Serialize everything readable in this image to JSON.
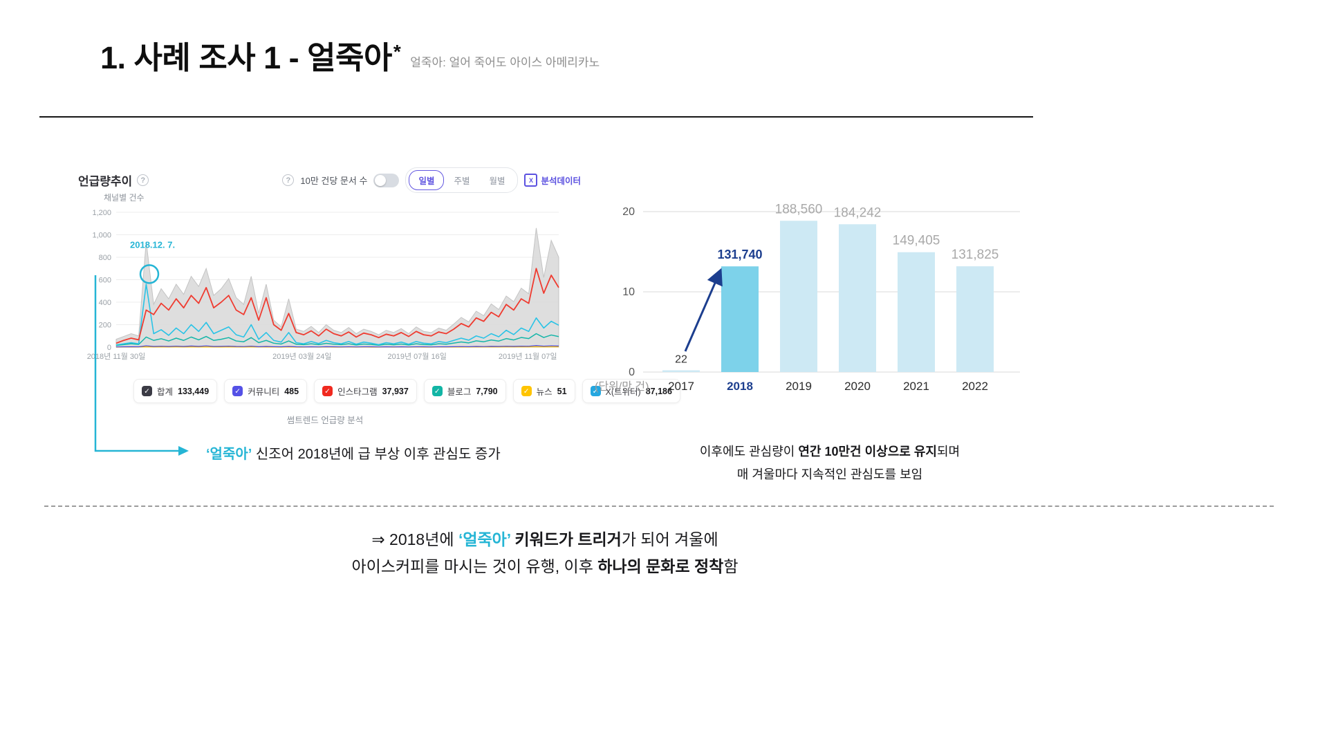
{
  "page": {
    "title": "1. 사례 조사 1 - 얼죽아",
    "title_star": "*",
    "title_note": "얼죽아: 얼어 죽어도 아이스 아메리카노"
  },
  "trend_panel": {
    "header": "언급량추이",
    "help_glyph": "?",
    "check_glyph": "✓",
    "doc_count_label": "10만 건당 문서 수",
    "period_tabs": [
      {
        "label": "일별",
        "selected": true
      },
      {
        "label": "주별",
        "selected": false
      },
      {
        "label": "월별",
        "selected": false
      }
    ],
    "export_label": "분석데이터",
    "channel_axis_label": "채널별 건수",
    "source_caption": "썸트렌드 언급량 분석",
    "legend": [
      {
        "label": "합계",
        "count": "133,449",
        "color": "#3b3b45"
      },
      {
        "label": "커뮤니티",
        "count": "485",
        "color": "#5451e6"
      },
      {
        "label": "인스타그램",
        "count": "37,937",
        "color": "#f0291f"
      },
      {
        "label": "블로그",
        "count": "7,790",
        "color": "#12b5a5"
      },
      {
        "label": "뉴스",
        "count": "51",
        "color": "#ffc400"
      },
      {
        "label": "X(트위터)",
        "count": "87,186",
        "color": "#24a7e0"
      }
    ]
  },
  "left_caption": {
    "highlight": "‘얼죽아’",
    "text": " 신조어 2018년에 급 부상 이후 관심도 증가"
  },
  "right_caption": {
    "line1_prefix": "이후에도 관심량이 ",
    "line1_bold": "연간 10만건 이상으로 유지",
    "line1_suffix": "되며",
    "line2": "매 겨울마다 지속적인 관심도를 보임"
  },
  "conclusion": {
    "line1_prefix": "⇒ 2018년에 ",
    "line1_highlight": "‘얼죽아’",
    "line1_bold": " 키워드가 트리거",
    "line1_suffix": "가 되어 겨울에",
    "line2_prefix": "아이스커피를 마시는 것이 유행, 이후 ",
    "line2_bold": "하나의 문화로 정착",
    "line2_suffix": "함"
  },
  "chart_data": [
    {
      "type": "line",
      "title": "언급량추이",
      "ylabel": "채널별 건수",
      "ylim": [
        0,
        1200
      ],
      "grid": true,
      "accent": "#25b5d5",
      "y_ticks": [
        "1,200",
        "1,000",
        "800",
        "600",
        "400",
        "200",
        "0"
      ],
      "y_tick_values": [
        1200,
        1000,
        800,
        600,
        400,
        200,
        0
      ],
      "x_ticks": [
        {
          "pos": 0.0,
          "label": "2018년 11월 30일"
        },
        {
          "pos": 0.42,
          "label": "2019년 03월 24일"
        },
        {
          "pos": 0.68,
          "label": "2019년 07월 16일"
        },
        {
          "pos": 0.93,
          "label": "2019년 11월 07일"
        }
      ],
      "annotation": {
        "label": "2018.12. 7.",
        "x": 0.075,
        "y": 650
      },
      "series": [
        {
          "name": "합계",
          "color": "#dadada",
          "stroke": "#c3c3c3",
          "fill": true,
          "opacity": 0.9,
          "values": [
            70,
            95,
            120,
            100,
            940,
            380,
            520,
            430,
            560,
            470,
            630,
            540,
            700,
            460,
            520,
            610,
            440,
            380,
            630,
            300,
            560,
            240,
            180,
            430,
            160,
            140,
            185,
            130,
            200,
            150,
            130,
            175,
            120,
            160,
            140,
            110,
            150,
            130,
            165,
            120,
            180,
            140,
            130,
            170,
            150,
            205,
            265,
            225,
            320,
            280,
            385,
            335,
            455,
            405,
            525,
            475,
            1060,
            620,
            950,
            800
          ]
        },
        {
          "name": "뉴스",
          "color": "#ffc400",
          "width": 1.2,
          "values": [
            0,
            1,
            1,
            1,
            3,
            1,
            2,
            1,
            2,
            1,
            2,
            1,
            2,
            1,
            1,
            2,
            1,
            1,
            2,
            1,
            1,
            1,
            0,
            1,
            0,
            0,
            1,
            0,
            1,
            0,
            0,
            1,
            0,
            1,
            0,
            0,
            1,
            0,
            1,
            0,
            1,
            0,
            0,
            1,
            1,
            1,
            1,
            1,
            2,
            1,
            2,
            1,
            2,
            2,
            2,
            2,
            4,
            2,
            3,
            3
          ]
        },
        {
          "name": "커뮤니티",
          "color": "#4a44d4",
          "width": 1.2,
          "values": [
            2,
            3,
            4,
            3,
            12,
            6,
            8,
            6,
            9,
            6,
            10,
            7,
            11,
            6,
            7,
            9,
            6,
            5,
            9,
            4,
            6,
            4,
            3,
            6,
            3,
            2,
            3,
            2,
            4,
            3,
            2,
            3,
            2,
            3,
            3,
            2,
            3,
            2,
            3,
            2,
            3,
            3,
            2,
            3,
            3,
            4,
            5,
            4,
            6,
            5,
            7,
            6,
            8,
            7,
            9,
            8,
            14,
            9,
            12,
            10
          ]
        },
        {
          "name": "블로그",
          "color": "#13b5a8",
          "width": 1.5,
          "values": [
            15,
            22,
            30,
            24,
            90,
            60,
            75,
            55,
            80,
            60,
            90,
            65,
            95,
            60,
            70,
            85,
            55,
            48,
            85,
            40,
            60,
            35,
            28,
            55,
            26,
            22,
            30,
            22,
            34,
            26,
            22,
            30,
            19,
            28,
            24,
            17,
            26,
            21,
            28,
            19,
            30,
            23,
            21,
            30,
            26,
            36,
            46,
            38,
            56,
            48,
            64,
            54,
            76,
            64,
            86,
            76,
            120,
            86,
            108,
            94
          ]
        },
        {
          "name": "X(트위터)",
          "color": "#29c3e6",
          "width": 1.6,
          "values": [
            20,
            30,
            40,
            30,
            560,
            120,
            155,
            105,
            170,
            120,
            200,
            140,
            220,
            120,
            150,
            180,
            110,
            90,
            200,
            70,
            130,
            60,
            45,
            130,
            40,
            30,
            50,
            32,
            60,
            40,
            30,
            50,
            26,
            45,
            35,
            22,
            40,
            30,
            45,
            26,
            50,
            35,
            30,
            50,
            40,
            60,
            80,
            62,
            100,
            80,
            120,
            92,
            150,
            112,
            170,
            140,
            260,
            170,
            230,
            195
          ]
        },
        {
          "name": "인스타그램",
          "color": "#ef3b30",
          "width": 1.8,
          "values": [
            35,
            60,
            80,
            65,
            330,
            290,
            390,
            330,
            430,
            350,
            460,
            390,
            530,
            350,
            400,
            460,
            330,
            290,
            440,
            240,
            440,
            200,
            150,
            300,
            130,
            110,
            145,
            100,
            160,
            120,
            100,
            135,
            90,
            125,
            110,
            85,
            115,
            100,
            130,
            95,
            140,
            110,
            100,
            135,
            120,
            160,
            210,
            180,
            260,
            230,
            310,
            270,
            380,
            330,
            430,
            390,
            700,
            480,
            640,
            530
          ]
        }
      ]
    },
    {
      "type": "bar",
      "categories": [
        "2017",
        "2018",
        "2019",
        "2020",
        "2021",
        "2022"
      ],
      "values": [
        0.0022,
        13.174,
        18.856,
        18.4242,
        14.9405,
        13.1825
      ],
      "value_labels": [
        "22",
        "131,740",
        "188,560",
        "184,242",
        "149,405",
        "131,825"
      ],
      "unit_label": "(단위/만 건)",
      "ylim": [
        0,
        20
      ],
      "y_ticks": [
        0,
        10,
        20
      ],
      "highlight_index": 1,
      "bar_color": "#cde9f4",
      "highlight_color": "#7dd2ea",
      "value_label_colors": [
        "#333333",
        "#1c3e8e",
        "#a9a9a9",
        "#a9a9a9",
        "#a9a9a9",
        "#a9a9a9"
      ],
      "value_label_sizes": [
        16,
        18,
        19,
        19,
        19,
        19
      ],
      "axis_label_color": "#555555",
      "year_color": "#2b2b2b",
      "highlight_year_color": "#1c3e8e",
      "arrow_color": "#1c3e8e"
    }
  ]
}
